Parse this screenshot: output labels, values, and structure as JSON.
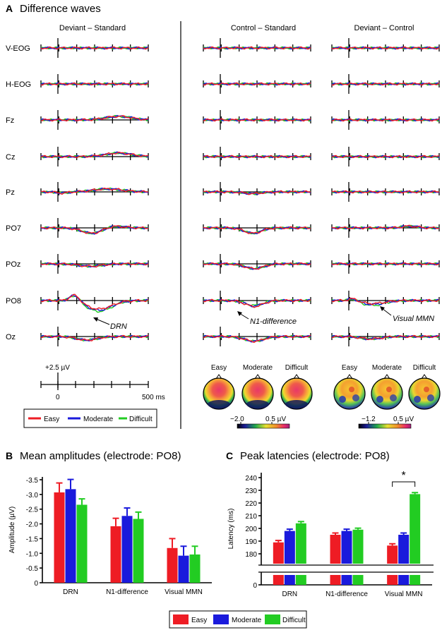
{
  "panel_a": {
    "letter": "A",
    "title": "Difference waves",
    "columns": [
      "Deviant – Standard",
      "Control – Standard",
      "Deviant – Control"
    ],
    "electrodes": [
      "V-EOG",
      "H-EOG",
      "Fz",
      "Cz",
      "Pz",
      "PO7",
      "POz",
      "PO8",
      "Oz"
    ],
    "annotations": {
      "drn": "DRN",
      "n1": "N1-difference",
      "mmn": "Visual MMN"
    },
    "scale": {
      "amplitude": "+2.5 µV",
      "t0": "0",
      "t1": "500 ms"
    },
    "legend": [
      {
        "label": "Easy",
        "color": "#ee1c24"
      },
      {
        "label": "Moderate",
        "color": "#1a1adc"
      },
      {
        "label": "Difficult",
        "color": "#22cc22"
      }
    ],
    "topo_labels": [
      "Easy",
      "Moderate",
      "Difficult",
      "Easy",
      "Moderate",
      "Difficult"
    ],
    "colorbar1": {
      "min": "−2.0",
      "max": "0.5 µV"
    },
    "colorbar2": {
      "min": "−1.2",
      "max": "0.5 µV"
    }
  },
  "panel_b": {
    "letter": "B",
    "title": "Mean amplitudes (electrode: PO8)"
  },
  "panel_c": {
    "letter": "C",
    "title": "Peak latencies (electrode: PO8)",
    "sig": "*"
  },
  "bottom_legend": [
    "Easy",
    "Moderate",
    "Difficult"
  ],
  "colors": {
    "easy": "#ee1c24",
    "moderate": "#1a1adc",
    "difficult": "#22cc22"
  },
  "chart_data": [
    {
      "type": "bar",
      "title": "Mean amplitudes (electrode: PO8)",
      "ylabel": "Amplitude (µV)",
      "xlabel": "",
      "ylim": [
        0,
        -3.5
      ],
      "yticks": [
        "-3.5",
        "-3.0",
        "-2.5",
        "-2.0",
        "-1.5",
        "-1.0",
        "-0.5",
        "0"
      ],
      "categories": [
        "DRN",
        "N1-difference",
        "Visual MMN"
      ],
      "series": [
        {
          "name": "Easy",
          "values": [
            -3.07,
            -1.92,
            -1.18
          ],
          "errors": [
            0.32,
            0.27,
            0.32
          ]
        },
        {
          "name": "Moderate",
          "values": [
            -3.18,
            -2.27,
            -0.92
          ],
          "errors": [
            0.33,
            0.27,
            0.32
          ]
        },
        {
          "name": "Difficult",
          "values": [
            -2.65,
            -2.17,
            -0.96
          ],
          "errors": [
            0.2,
            0.23,
            0.28
          ]
        }
      ]
    },
    {
      "type": "bar",
      "title": "Peak latencies (electrode: PO8)",
      "ylabel": "Latency (ms)",
      "xlabel": "",
      "ylim": [
        175,
        240
      ],
      "axis_break": true,
      "yticks": [
        "240",
        "230",
        "220",
        "210",
        "200",
        "190",
        "180",
        "0"
      ],
      "categories": [
        "DRN",
        "N1-difference",
        "Visual MMN"
      ],
      "series": [
        {
          "name": "Easy",
          "values": [
            189,
            195,
            186.5
          ],
          "errors": [
            1.5,
            1.4,
            1.4
          ]
        },
        {
          "name": "Moderate",
          "values": [
            198,
            198,
            195
          ],
          "errors": [
            1.4,
            1.4,
            1.4
          ]
        },
        {
          "name": "Difficult",
          "values": [
            204,
            199,
            227
          ],
          "errors": [
            1.4,
            1.2,
            1.2
          ]
        }
      ],
      "annotation": "* (Easy vs Difficult, Visual MMN)"
    }
  ]
}
